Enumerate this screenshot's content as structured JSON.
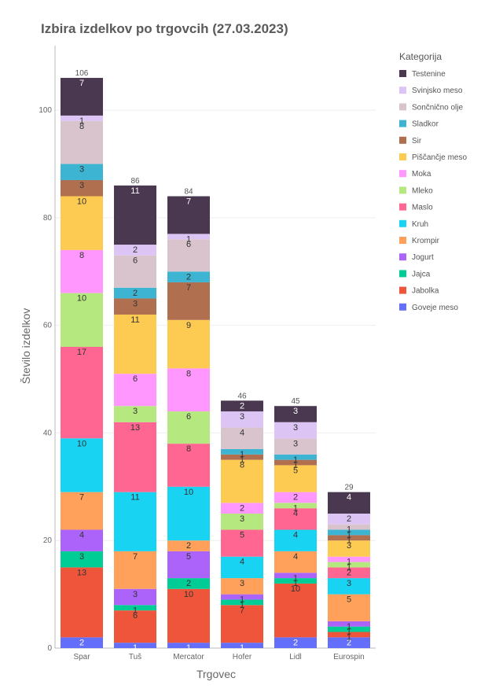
{
  "chart_data": {
    "type": "bar",
    "stacked": true,
    "title": "Izbira izdelkov po trgovcih (27.03.2023)",
    "xlabel": "Trgovec",
    "ylabel": "Število izdelkov",
    "ylim": [
      0,
      112
    ],
    "yticks": [
      0,
      20,
      40,
      60,
      80,
      100
    ],
    "grid": true,
    "legend_title": "Kategorija",
    "legend_position": "right",
    "categories": [
      "Spar",
      "Tuš",
      "Mercator",
      "Hofer",
      "Lidl",
      "Eurospin"
    ],
    "totals": [
      106,
      86,
      84,
      46,
      45,
      29
    ],
    "series": [
      {
        "name": "Goveje meso",
        "color": "#636efa",
        "values": [
          2,
          1,
          1,
          1,
          2,
          2
        ]
      },
      {
        "name": "Jabolka",
        "color": "#ef553b",
        "values": [
          13,
          6,
          10,
          7,
          10,
          1
        ]
      },
      {
        "name": "Jajca",
        "color": "#00cc96",
        "values": [
          3,
          1,
          2,
          1,
          1,
          1
        ]
      },
      {
        "name": "Jogurt",
        "color": "#ab63fa",
        "values": [
          4,
          3,
          5,
          1,
          1,
          1
        ]
      },
      {
        "name": "Krompir",
        "color": "#ffa15a",
        "values": [
          7,
          7,
          2,
          3,
          4,
          5
        ]
      },
      {
        "name": "Kruh",
        "color": "#19d3f3",
        "values": [
          10,
          11,
          10,
          4,
          4,
          3
        ]
      },
      {
        "name": "Maslo",
        "color": "#ff6692",
        "values": [
          17,
          13,
          8,
          5,
          4,
          2
        ]
      },
      {
        "name": "Mleko",
        "color": "#b6e880",
        "values": [
          10,
          3,
          6,
          3,
          1,
          1
        ]
      },
      {
        "name": "Moka",
        "color": "#ff97ff",
        "values": [
          8,
          6,
          8,
          2,
          2,
          1
        ]
      },
      {
        "name": "Piščančje meso",
        "color": "#fecb52",
        "values": [
          10,
          11,
          9,
          8,
          5,
          3
        ]
      },
      {
        "name": "Sir",
        "color": "#b07050",
        "values": [
          3,
          3,
          7,
          1,
          1,
          1
        ]
      },
      {
        "name": "Sladkor",
        "color": "#3cb4d2",
        "values": [
          3,
          2,
          2,
          1,
          1,
          1
        ]
      },
      {
        "name": "Sončnično olje",
        "color": "#d9c4cd",
        "values": [
          8,
          6,
          6,
          4,
          3,
          1
        ]
      },
      {
        "name": "Svinjsko meso",
        "color": "#dcc5f5",
        "values": [
          1,
          2,
          1,
          3,
          3,
          2
        ]
      },
      {
        "name": "Testenine",
        "color": "#4a3850",
        "values": [
          7,
          11,
          7,
          2,
          3,
          4
        ]
      }
    ]
  }
}
